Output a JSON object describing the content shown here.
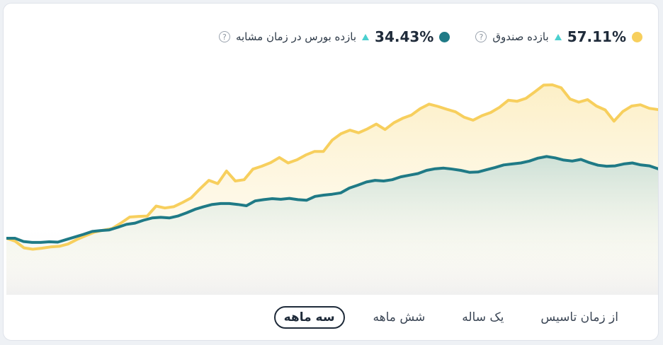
{
  "legend": {
    "fund": {
      "value": "57.11%",
      "label": "بازده صندوق",
      "color": "#f7cf5d"
    },
    "market": {
      "value": "34.43%",
      "label": "بازده بورس در زمان مشابه",
      "color": "#1f7a86"
    },
    "help_glyph": "?"
  },
  "ranges": [
    {
      "label": "از زمان تاسیس",
      "active": false
    },
    {
      "label": "یک ساله",
      "active": false
    },
    {
      "label": "شش ماهه",
      "active": false
    },
    {
      "label": "سه ماهه",
      "active": true
    }
  ],
  "chart_data": {
    "type": "area",
    "grid": false,
    "series": [
      {
        "color": "#f7cf5d",
        "values": [
          0.0,
          -0.9,
          -3.0,
          -3.4,
          -3.1,
          -2.7,
          -2.5,
          -1.8,
          -0.4,
          0.8,
          1.9,
          2.5,
          3.0,
          4.7,
          6.6,
          6.8,
          6.9,
          10.0,
          9.4,
          9.8,
          11.1,
          12.6,
          15.4,
          18.0,
          17.0,
          20.9,
          17.8,
          18.2,
          21.5,
          22.4,
          23.5,
          25.1,
          23.4,
          24.4,
          25.9,
          27.0,
          27.0,
          30.5,
          32.5,
          33.6,
          32.8,
          34.0,
          35.5,
          33.8,
          35.9,
          37.3,
          38.3,
          40.3,
          41.7,
          41.0,
          40.1,
          39.3,
          37.6,
          36.7,
          38.1,
          39.1,
          40.7,
          42.9,
          42.6,
          43.5,
          45.5,
          47.6,
          47.7,
          46.8,
          43.3,
          42.3,
          43.1,
          41.1,
          39.9,
          36.4,
          39.4,
          41.1,
          41.5,
          40.4,
          40.0
        ]
      },
      {
        "color": "#1f7a86",
        "values": [
          0.0,
          0.0,
          -1.0,
          -1.3,
          -1.3,
          -1.1,
          -1.2,
          -0.4,
          0.4,
          1.2,
          2.1,
          2.4,
          2.6,
          3.4,
          4.3,
          4.7,
          5.6,
          6.3,
          6.5,
          6.3,
          6.9,
          7.9,
          9.0,
          9.8,
          10.5,
          10.8,
          10.8,
          10.5,
          10.1,
          11.6,
          12.0,
          12.3,
          12.1,
          12.4,
          12.0,
          11.8,
          13.0,
          13.4,
          13.7,
          14.1,
          15.6,
          16.5,
          17.5,
          18.0,
          17.8,
          18.2,
          19.1,
          19.6,
          20.1,
          21.1,
          21.6,
          21.8,
          21.5,
          21.1,
          20.5,
          20.6,
          21.3,
          22.0,
          22.8,
          23.1,
          23.4,
          24.0,
          24.9,
          25.4,
          25.0,
          24.3,
          24.0,
          24.5,
          23.5,
          22.7,
          22.4,
          22.5,
          23.1,
          23.4,
          22.8,
          22.5,
          21.6
        ]
      }
    ]
  }
}
